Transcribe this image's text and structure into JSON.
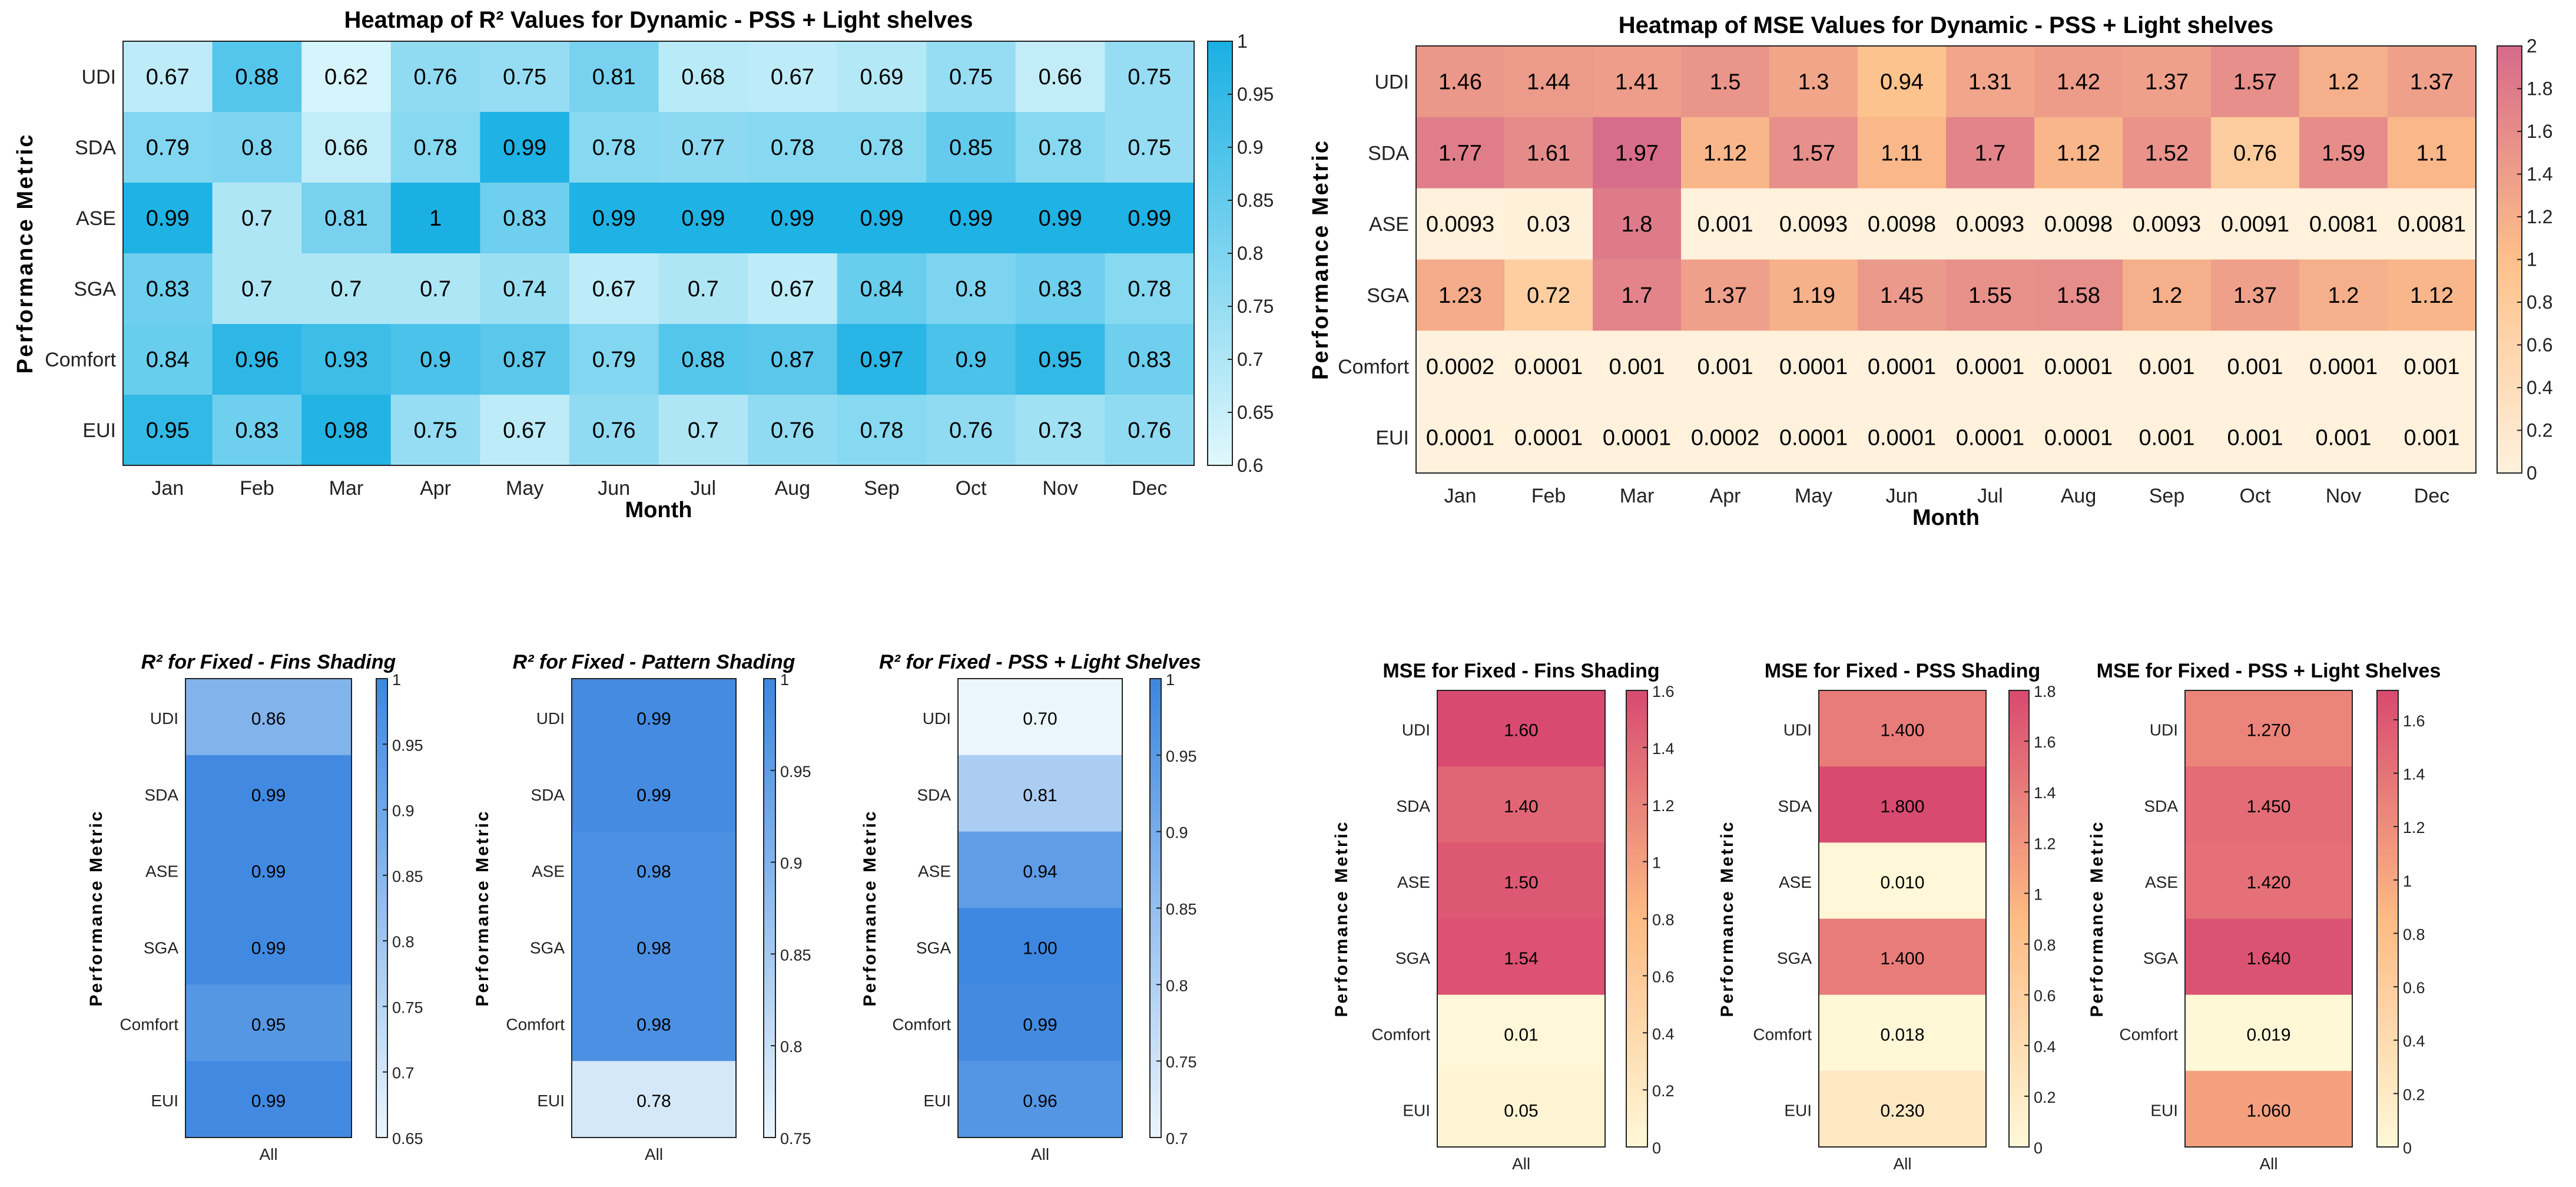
{
  "chart_data": [
    {
      "type": "heatmap",
      "title": "Heatmap of R² Values for Dynamic - PSS + Light shelves",
      "xlabel": "Month",
      "ylabel": "Performance Metric",
      "columns": [
        "Jan",
        "Feb",
        "Mar",
        "Apr",
        "May",
        "Jun",
        "Jul",
        "Aug",
        "Sep",
        "Oct",
        "Nov",
        "Dec"
      ],
      "rows": [
        "UDI",
        "SDA",
        "ASE",
        "SGA",
        "Comfort",
        "EUI"
      ],
      "values": [
        [
          "0.67",
          "0.88",
          "0.62",
          "0.76",
          "0.75",
          "0.81",
          "0.68",
          "0.67",
          "0.69",
          "0.75",
          "0.66",
          "0.75"
        ],
        [
          "0.79",
          "0.8",
          "0.66",
          "0.78",
          "0.99",
          "0.78",
          "0.77",
          "0.78",
          "0.78",
          "0.85",
          "0.78",
          "0.75"
        ],
        [
          "0.99",
          "0.7",
          "0.81",
          "1",
          "0.83",
          "0.99",
          "0.99",
          "0.99",
          "0.99",
          "0.99",
          "0.99",
          "0.99"
        ],
        [
          "0.83",
          "0.7",
          "0.7",
          "0.7",
          "0.74",
          "0.67",
          "0.7",
          "0.67",
          "0.84",
          "0.8",
          "0.83",
          "0.78"
        ],
        [
          "0.84",
          "0.96",
          "0.93",
          "0.9",
          "0.87",
          "0.79",
          "0.88",
          "0.87",
          "0.97",
          "0.9",
          "0.95",
          "0.83"
        ],
        [
          "0.95",
          "0.83",
          "0.98",
          "0.75",
          "0.67",
          "0.76",
          "0.7",
          "0.76",
          "0.78",
          "0.76",
          "0.73",
          "0.76"
        ]
      ],
      "clim": [
        0.6,
        1
      ],
      "colorbar_ticks": [
        "0.6",
        "0.65",
        "0.7",
        "0.75",
        "0.8",
        "0.85",
        "0.9",
        "0.95",
        "1"
      ],
      "colormap": [
        "#e0f8fc",
        "#1ab0e3"
      ]
    },
    {
      "type": "heatmap",
      "title": "Heatmap of MSE Values for Dynamic - PSS + Light shelves",
      "xlabel": "Month",
      "ylabel": "Performance Metric",
      "columns": [
        "Jan",
        "Feb",
        "Mar",
        "Apr",
        "May",
        "Jun",
        "Jul",
        "Aug",
        "Sep",
        "Oct",
        "Nov",
        "Dec"
      ],
      "rows": [
        "UDI",
        "SDA",
        "ASE",
        "SGA",
        "Comfort",
        "EUI"
      ],
      "values": [
        [
          "1.46",
          "1.44",
          "1.41",
          "1.5",
          "1.3",
          "0.94",
          "1.31",
          "1.42",
          "1.37",
          "1.57",
          "1.2",
          "1.37"
        ],
        [
          "1.77",
          "1.61",
          "1.97",
          "1.12",
          "1.57",
          "1.11",
          "1.7",
          "1.12",
          "1.52",
          "0.76",
          "1.59",
          "1.1"
        ],
        [
          "0.0093",
          "0.03",
          "1.8",
          "0.001",
          "0.0093",
          "0.0098",
          "0.0093",
          "0.0098",
          "0.0093",
          "0.0091",
          "0.0081",
          "0.0081"
        ],
        [
          "1.23",
          "0.72",
          "1.7",
          "1.37",
          "1.19",
          "1.45",
          "1.55",
          "1.58",
          "1.2",
          "1.37",
          "1.2",
          "1.12"
        ],
        [
          "0.0002",
          "0.0001",
          "0.001",
          "0.001",
          "0.0001",
          "0.0001",
          "0.0001",
          "0.0001",
          "0.001",
          "0.001",
          "0.0001",
          "0.001"
        ],
        [
          "0.0001",
          "0.0001",
          "0.0001",
          "0.0002",
          "0.0001",
          "0.0001",
          "0.0001",
          "0.0001",
          "0.001",
          "0.001",
          "0.001",
          "0.001"
        ]
      ],
      "clim": [
        0,
        2
      ],
      "colorbar_ticks": [
        "0",
        "0.2",
        "0.4",
        "0.6",
        "0.8",
        "1",
        "1.2",
        "1.4",
        "1.6",
        "1.8",
        "2"
      ],
      "colormap": [
        "#fff1dc",
        "#fdc08a",
        "#d66a8a"
      ]
    },
    {
      "type": "heatmap",
      "title": "R² for Fixed - Fins Shading",
      "xlabel": "",
      "ylabel": "Performance Metric",
      "columns": [
        "All"
      ],
      "rows": [
        "UDI",
        "SDA",
        "ASE",
        "SGA",
        "Comfort",
        "EUI"
      ],
      "values": [
        [
          "0.86"
        ],
        [
          "0.99"
        ],
        [
          "0.99"
        ],
        [
          "0.99"
        ],
        [
          "0.95"
        ],
        [
          "0.99"
        ]
      ],
      "clim": [
        0.65,
        1
      ],
      "colorbar_ticks": [
        "0.65",
        "0.7",
        "0.75",
        "0.8",
        "0.85",
        "0.9",
        "0.95",
        "1"
      ],
      "colormap": [
        "#eaf5fc",
        "#3d87e0"
      ]
    },
    {
      "type": "heatmap",
      "title": "R² for Fixed - Pattern Shading",
      "xlabel": "",
      "ylabel": "Performance Metric",
      "columns": [
        "All"
      ],
      "rows": [
        "UDI",
        "SDA",
        "ASE",
        "SGA",
        "Comfort",
        "EUI"
      ],
      "values": [
        [
          "0.99"
        ],
        [
          "0.99"
        ],
        [
          "0.98"
        ],
        [
          "0.98"
        ],
        [
          "0.98"
        ],
        [
          "0.78"
        ]
      ],
      "clim": [
        0.75,
        1
      ],
      "colorbar_ticks": [
        "0.75",
        "0.8",
        "0.85",
        "0.9",
        "0.95",
        "1"
      ],
      "colormap": [
        "#eaf5fc",
        "#3d87e0"
      ]
    },
    {
      "type": "heatmap",
      "title": "R² for Fixed - PSS + Light Shelves",
      "xlabel": "",
      "ylabel": "Performance Metric",
      "columns": [
        "All"
      ],
      "rows": [
        "UDI",
        "SDA",
        "ASE",
        "SGA",
        "Comfort",
        "EUI"
      ],
      "values": [
        [
          "0.70"
        ],
        [
          "0.81"
        ],
        [
          "0.94"
        ],
        [
          "1.00"
        ],
        [
          "0.99"
        ],
        [
          "0.96"
        ]
      ],
      "clim": [
        0.7,
        1
      ],
      "colorbar_ticks": [
        "0.7",
        "0.75",
        "0.8",
        "0.85",
        "0.9",
        "0.95",
        "1"
      ],
      "colormap": [
        "#eaf5fc",
        "#3d87e0"
      ]
    },
    {
      "type": "heatmap",
      "title": "MSE for Fixed - Fins Shading",
      "xlabel": "",
      "ylabel": "Performance Metric",
      "columns": [
        "All"
      ],
      "rows": [
        "UDI",
        "SDA",
        "ASE",
        "SGA",
        "Comfort",
        "EUI"
      ],
      "values": [
        [
          "1.60"
        ],
        [
          "1.40"
        ],
        [
          "1.50"
        ],
        [
          "1.54"
        ],
        [
          "0.01"
        ],
        [
          "0.05"
        ]
      ],
      "clim": [
        0,
        1.6
      ],
      "colorbar_ticks": [
        "0",
        "0.2",
        "0.4",
        "0.6",
        "0.8",
        "1",
        "1.2",
        "1.4",
        "1.6"
      ],
      "colormap": [
        "#fff8d8",
        "#fdbb84",
        "#d84a70"
      ]
    },
    {
      "type": "heatmap",
      "title": "MSE for Fixed - PSS Shading",
      "xlabel": "",
      "ylabel": "Performance Metric",
      "columns": [
        "All"
      ],
      "rows": [
        "UDI",
        "SDA",
        "ASE",
        "SGA",
        "Comfort",
        "EUI"
      ],
      "values": [
        [
          "1.400"
        ],
        [
          "1.800"
        ],
        [
          "0.010"
        ],
        [
          "1.400"
        ],
        [
          "0.018"
        ],
        [
          "0.230"
        ]
      ],
      "clim": [
        0,
        1.8
      ],
      "colorbar_ticks": [
        "0",
        "0.2",
        "0.4",
        "0.6",
        "0.8",
        "1",
        "1.2",
        "1.4",
        "1.6",
        "1.8"
      ],
      "colormap": [
        "#fff8d8",
        "#fdbb84",
        "#d84a70"
      ]
    },
    {
      "type": "heatmap",
      "title": "MSE for Fixed - PSS + Light Shelves",
      "xlabel": "",
      "ylabel": "Performance Metric",
      "columns": [
        "All"
      ],
      "rows": [
        "UDI",
        "SDA",
        "ASE",
        "SGA",
        "Comfort",
        "EUI"
      ],
      "values": [
        [
          "1.270"
        ],
        [
          "1.450"
        ],
        [
          "1.420"
        ],
        [
          "1.640"
        ],
        [
          "0.019"
        ],
        [
          "1.060"
        ]
      ],
      "clim": [
        0,
        1.71
      ],
      "colorbar_ticks": [
        "0",
        "0.2",
        "0.4",
        "0.6",
        "0.8",
        "1",
        "1.2",
        "1.4",
        "1.6"
      ],
      "colormap": [
        "#fff8d8",
        "#fdbb84",
        "#d84a70"
      ]
    }
  ]
}
